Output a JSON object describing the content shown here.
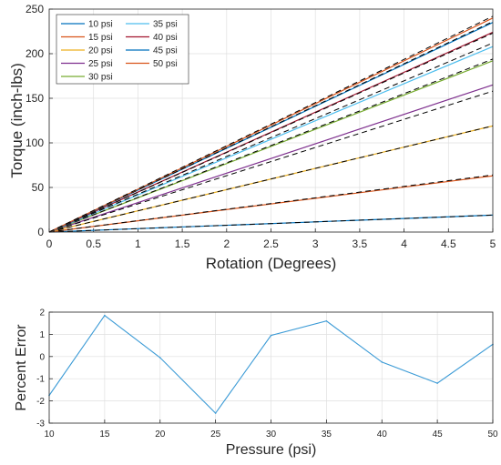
{
  "chart_data": [
    {
      "type": "line",
      "xlabel": "Rotation (Degrees)",
      "ylabel": "Torque (inch-lbs)",
      "xlim": [
        0,
        5
      ],
      "ylim": [
        0,
        250
      ],
      "xticks": [
        0,
        0.5,
        1,
        1.5,
        2,
        2.5,
        3,
        3.5,
        4,
        4.5,
        5
      ],
      "xtick_labels": [
        "0",
        "0.5",
        "1",
        "1.5",
        "2",
        "2.5",
        "3",
        "3.5",
        "4",
        "4.5",
        "5"
      ],
      "yticks": [
        0,
        50,
        100,
        150,
        200,
        250
      ],
      "ytick_labels": [
        "0",
        "50",
        "100",
        "150",
        "200",
        "250"
      ],
      "grid": true,
      "legend_position": "top-left",
      "legend_columns": 2,
      "x": [
        0,
        5
      ],
      "series": [
        {
          "name": "10 psi",
          "color": "#0072bd",
          "values": [
            0,
            19
          ],
          "model_values": [
            0,
            19
          ]
        },
        {
          "name": "15 psi",
          "color": "#d95319",
          "values": [
            0,
            63
          ],
          "model_values": [
            0,
            64
          ]
        },
        {
          "name": "20 psi",
          "color": "#edb120",
          "values": [
            0,
            119
          ],
          "model_values": [
            0,
            119
          ]
        },
        {
          "name": "25 psi",
          "color": "#7e2f8e",
          "values": [
            0,
            165
          ],
          "model_values": [
            0,
            158
          ]
        },
        {
          "name": "30 psi",
          "color": "#77ac30",
          "values": [
            0,
            192
          ],
          "model_values": [
            0,
            194
          ]
        },
        {
          "name": "35 psi",
          "color": "#4dbeee",
          "values": [
            0,
            208
          ],
          "model_values": [
            0,
            212
          ]
        },
        {
          "name": "40 psi",
          "color": "#a2142f",
          "values": [
            0,
            224
          ],
          "model_values": [
            0,
            223
          ]
        },
        {
          "name": "45 psi",
          "color": "#0072bd",
          "values": [
            0,
            235
          ],
          "model_values": [
            0,
            236
          ]
        },
        {
          "name": "50 psi",
          "color": "#d95319",
          "values": [
            0,
            240
          ],
          "model_values": [
            0,
            242
          ]
        }
      ],
      "model_line_color": "#000000",
      "model_line_style": "dashed"
    },
    {
      "type": "line",
      "xlabel": "Pressure (psi)",
      "ylabel": "Percent Error",
      "xlim": [
        10,
        50
      ],
      "ylim": [
        -3,
        2
      ],
      "xticks": [
        10,
        15,
        20,
        25,
        30,
        35,
        40,
        45,
        50
      ],
      "xtick_labels": [
        "10",
        "15",
        "20",
        "25",
        "30",
        "35",
        "40",
        "45",
        "50"
      ],
      "yticks": [
        -3,
        -2,
        -1,
        0,
        1,
        2
      ],
      "ytick_labels": [
        "-3",
        "-2",
        "-1",
        "0",
        "1",
        "2"
      ],
      "grid": true,
      "x": [
        10,
        15,
        20,
        25,
        30,
        35,
        40,
        45,
        50
      ],
      "series": [
        {
          "color": "#3c9bd6",
          "values": [
            -1.75,
            1.85,
            -0.05,
            -2.55,
            0.95,
            1.6,
            -0.25,
            -1.2,
            0.55
          ]
        }
      ]
    }
  ]
}
